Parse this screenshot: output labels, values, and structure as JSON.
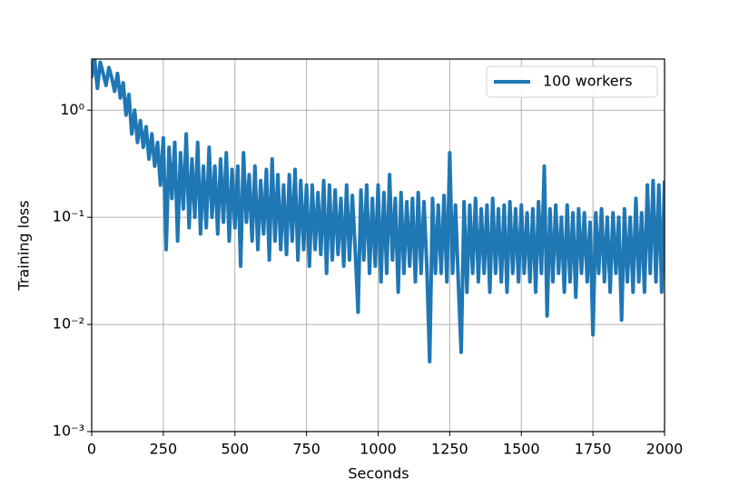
{
  "chart_data": {
    "type": "line",
    "xlabel": "Seconds",
    "ylabel": "Training loss",
    "x": [
      0,
      10,
      20,
      30,
      40,
      50,
      60,
      70,
      80,
      90,
      100,
      110,
      120,
      130,
      140,
      150,
      160,
      170,
      180,
      190,
      200,
      210,
      220,
      230,
      240,
      250,
      260,
      270,
      280,
      290,
      300,
      310,
      320,
      330,
      340,
      350,
      360,
      370,
      380,
      390,
      400,
      410,
      420,
      430,
      440,
      450,
      460,
      470,
      480,
      490,
      500,
      510,
      520,
      530,
      540,
      550,
      560,
      570,
      580,
      590,
      600,
      610,
      620,
      630,
      640,
      650,
      660,
      670,
      680,
      690,
      700,
      710,
      720,
      730,
      740,
      750,
      760,
      770,
      780,
      790,
      800,
      810,
      820,
      830,
      840,
      850,
      860,
      870,
      880,
      890,
      900,
      910,
      920,
      930,
      940,
      950,
      960,
      970,
      980,
      990,
      1000,
      1010,
      1020,
      1030,
      1040,
      1050,
      1060,
      1070,
      1080,
      1090,
      1100,
      1110,
      1120,
      1130,
      1140,
      1150,
      1160,
      1170,
      1180,
      1190,
      1200,
      1210,
      1220,
      1230,
      1240,
      1250,
      1260,
      1270,
      1280,
      1290,
      1300,
      1310,
      1320,
      1330,
      1340,
      1350,
      1360,
      1370,
      1380,
      1390,
      1400,
      1410,
      1420,
      1430,
      1440,
      1450,
      1460,
      1470,
      1480,
      1490,
      1500,
      1510,
      1520,
      1530,
      1540,
      1550,
      1560,
      1570,
      1580,
      1590,
      1600,
      1610,
      1620,
      1630,
      1640,
      1650,
      1660,
      1670,
      1680,
      1690,
      1700,
      1710,
      1720,
      1730,
      1740,
      1750,
      1760,
      1770,
      1780,
      1790,
      1800,
      1810,
      1820,
      1830,
      1840,
      1850,
      1860,
      1870,
      1880,
      1890,
      1900,
      1910,
      1920,
      1930,
      1940,
      1950,
      1960,
      1970,
      1980,
      1990,
      2000
    ],
    "series": [
      {
        "name": "100 workers",
        "color": "#1f77b4",
        "values": [
          2.0,
          3.0,
          1.6,
          2.8,
          2.2,
          1.7,
          2.5,
          2.0,
          1.5,
          2.2,
          1.3,
          1.8,
          0.9,
          1.4,
          0.6,
          1.0,
          0.5,
          0.8,
          0.45,
          0.7,
          0.35,
          0.6,
          0.3,
          0.5,
          0.2,
          0.55,
          0.05,
          0.45,
          0.15,
          0.5,
          0.06,
          0.4,
          0.12,
          0.6,
          0.08,
          0.35,
          0.1,
          0.5,
          0.07,
          0.3,
          0.08,
          0.45,
          0.1,
          0.3,
          0.07,
          0.35,
          0.09,
          0.4,
          0.06,
          0.28,
          0.08,
          0.3,
          0.035,
          0.4,
          0.09,
          0.25,
          0.06,
          0.3,
          0.05,
          0.22,
          0.07,
          0.28,
          0.04,
          0.35,
          0.06,
          0.25,
          0.05,
          0.2,
          0.045,
          0.25,
          0.06,
          0.28,
          0.04,
          0.22,
          0.05,
          0.2,
          0.035,
          0.2,
          0.05,
          0.17,
          0.045,
          0.22,
          0.03,
          0.2,
          0.04,
          0.18,
          0.045,
          0.15,
          0.035,
          0.2,
          0.04,
          0.16,
          0.05,
          0.013,
          0.18,
          0.04,
          0.2,
          0.03,
          0.15,
          0.035,
          0.2,
          0.025,
          0.17,
          0.03,
          0.25,
          0.04,
          0.15,
          0.02,
          0.17,
          0.03,
          0.14,
          0.035,
          0.15,
          0.025,
          0.17,
          0.03,
          0.14,
          0.035,
          0.0045,
          0.15,
          0.03,
          0.13,
          0.03,
          0.16,
          0.025,
          0.4,
          0.03,
          0.13,
          0.025,
          0.0055,
          0.14,
          0.02,
          0.13,
          0.03,
          0.15,
          0.025,
          0.12,
          0.03,
          0.13,
          0.02,
          0.15,
          0.03,
          0.12,
          0.025,
          0.13,
          0.02,
          0.14,
          0.03,
          0.12,
          0.025,
          0.13,
          0.03,
          0.11,
          0.025,
          0.12,
          0.02,
          0.14,
          0.03,
          0.3,
          0.012,
          0.12,
          0.025,
          0.13,
          0.03,
          0.1,
          0.02,
          0.13,
          0.025,
          0.11,
          0.018,
          0.12,
          0.03,
          0.11,
          0.025,
          0.09,
          0.008,
          0.11,
          0.03,
          0.12,
          0.025,
          0.1,
          0.02,
          0.11,
          0.03,
          0.1,
          0.011,
          0.12,
          0.025,
          0.1,
          0.02,
          0.15,
          0.025,
          0.11,
          0.02,
          0.2,
          0.03,
          0.22,
          0.025,
          0.2,
          0.02,
          0.22
        ]
      }
    ],
    "xlim": [
      0,
      2000
    ],
    "xticks": [
      0,
      250,
      500,
      750,
      1000,
      1250,
      1500,
      1750,
      2000
    ],
    "ylim": [
      0.001,
      3
    ],
    "ylog": true,
    "yticks": [
      {
        "value": 0.001,
        "label": "10⁻³"
      },
      {
        "value": 0.01,
        "label": "10⁻²"
      },
      {
        "value": 0.1,
        "label": "10⁻¹"
      },
      {
        "value": 1,
        "label": "10⁰"
      }
    ],
    "grid": true,
    "legend": "upper right"
  }
}
